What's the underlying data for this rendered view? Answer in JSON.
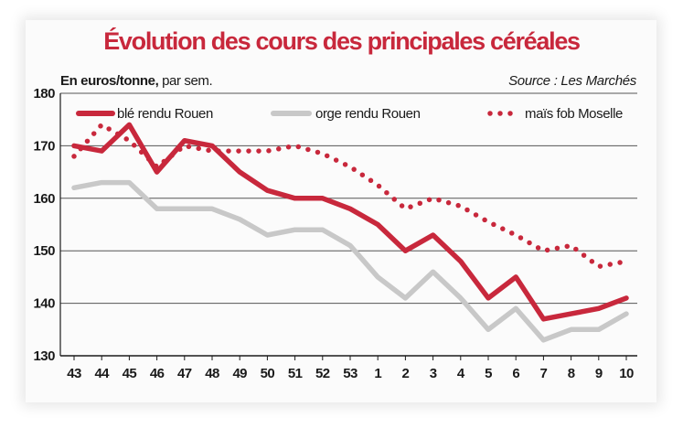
{
  "colors": {
    "title": "#c8283c",
    "ble": "#c8283c",
    "orge": "#c8c8c8",
    "mais": "#c8283c",
    "grid": "#555555",
    "card": "#fbfbfb"
  },
  "title": "Évolution des cours des principales céréales",
  "unit_bold": "En euros/tonne,",
  "unit_rest": " par sem.",
  "source": "Source : Les Marchés",
  "chart_data": {
    "type": "line",
    "title": "Évolution des cours des principales céréales",
    "ylabel": "En euros/tonne, par sem.",
    "xlabel": "",
    "ylim": [
      130,
      180
    ],
    "yticks": [
      130,
      140,
      150,
      160,
      170,
      180
    ],
    "grid": true,
    "legend_position": "top",
    "categories": [
      "43",
      "44",
      "45",
      "46",
      "47",
      "48",
      "49",
      "50",
      "51",
      "52",
      "53",
      "1",
      "2",
      "3",
      "4",
      "5",
      "6",
      "7",
      "8",
      "9",
      "10"
    ],
    "series": [
      {
        "name": "blé rendu Rouen",
        "style": "solid",
        "color": "#c8283c",
        "values": [
          170,
          169,
          174,
          165,
          171,
          170,
          165,
          161.5,
          160,
          160,
          158,
          155,
          150,
          153,
          148,
          141,
          145,
          137,
          138,
          139,
          141
        ]
      },
      {
        "name": "orge rendu Rouen",
        "style": "solid",
        "color": "#c8c8c8",
        "values": [
          162,
          163,
          163,
          158,
          158,
          158,
          156,
          153,
          154,
          154,
          151,
          145,
          141,
          146,
          141,
          135,
          139,
          133,
          135,
          135,
          138
        ]
      },
      {
        "name": "maïs fob Moselle",
        "style": "dotted",
        "color": "#c8283c",
        "values": [
          168,
          174,
          171,
          166,
          170,
          169,
          169,
          169,
          170,
          168.5,
          166,
          162.5,
          158,
          160,
          158.5,
          155.5,
          153,
          150,
          151,
          147,
          148
        ]
      }
    ]
  }
}
